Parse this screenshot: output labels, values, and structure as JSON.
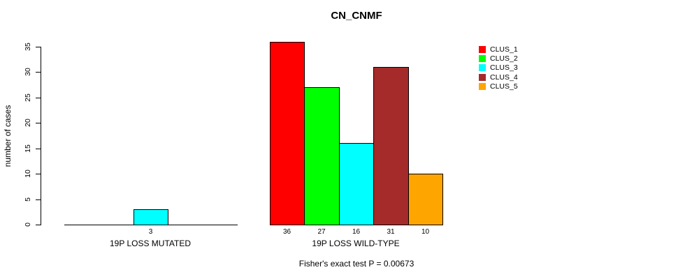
{
  "chart_data": {
    "type": "bar",
    "title": "CN_CNMF",
    "ylabel": "number of cases",
    "xlabel": "",
    "footnote": "Fisher's exact test P = 0.00673",
    "ylim": [
      0,
      36
    ],
    "yticks": [
      0,
      5,
      10,
      15,
      20,
      25,
      30,
      35
    ],
    "grid": false,
    "legend_position": "right",
    "categories": [
      "19P LOSS MUTATED",
      "19P LOSS WILD-TYPE"
    ],
    "series": [
      {
        "name": "CLUS_1",
        "color": "#ff0000",
        "values": [
          0,
          36
        ]
      },
      {
        "name": "CLUS_2",
        "color": "#00ff00",
        "values": [
          0,
          27
        ]
      },
      {
        "name": "CLUS_3",
        "color": "#00ffff",
        "values": [
          3,
          16
        ]
      },
      {
        "name": "CLUS_4",
        "color": "#a52a2a",
        "values": [
          0,
          31
        ]
      },
      {
        "name": "CLUS_5",
        "color": "#ffa500",
        "values": [
          0,
          10
        ]
      }
    ],
    "bar_value_labels": [
      [
        "",
        "",
        "3",
        "",
        ""
      ],
      [
        "36",
        "27",
        "16",
        "31",
        "10"
      ]
    ],
    "legend": [
      {
        "label": "CLUS_1",
        "color": "#ff0000"
      },
      {
        "label": "CLUS_2",
        "color": "#00ff00"
      },
      {
        "label": "CLUS_3",
        "color": "#00ffff"
      },
      {
        "label": "CLUS_4",
        "color": "#a52a2a"
      },
      {
        "label": "CLUS_5",
        "color": "#ffa500"
      }
    ]
  }
}
